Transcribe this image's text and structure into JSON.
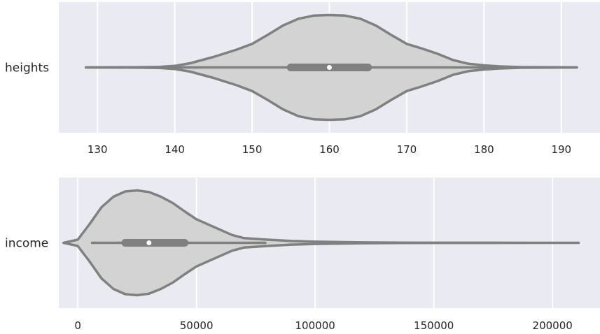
{
  "chart_data": [
    {
      "type": "violin",
      "category": "heights",
      "xlim": [
        125,
        195
      ],
      "xticks": [
        130,
        140,
        150,
        160,
        170,
        180,
        190
      ],
      "xtick_labels": [
        "130",
        "140",
        "150",
        "160",
        "170",
        "180",
        "190"
      ],
      "grid": true,
      "stats": {
        "min": 128.5,
        "q1": 155,
        "median": 160,
        "q3": 165,
        "max": 192
      },
      "density": [
        [
          128.5,
          0.0
        ],
        [
          135,
          0.002
        ],
        [
          138,
          0.01
        ],
        [
          140,
          0.03
        ],
        [
          142,
          0.08
        ],
        [
          145,
          0.2
        ],
        [
          148,
          0.34
        ],
        [
          150,
          0.45
        ],
        [
          152,
          0.62
        ],
        [
          154,
          0.8
        ],
        [
          156,
          0.93
        ],
        [
          158,
          0.99
        ],
        [
          160,
          1.0
        ],
        [
          162,
          0.99
        ],
        [
          164,
          0.93
        ],
        [
          166,
          0.8
        ],
        [
          168,
          0.62
        ],
        [
          170,
          0.45
        ],
        [
          172,
          0.36
        ],
        [
          174,
          0.26
        ],
        [
          176,
          0.14
        ],
        [
          178,
          0.07
        ],
        [
          180,
          0.04
        ],
        [
          182,
          0.02
        ],
        [
          185,
          0.005
        ],
        [
          192,
          0.0
        ]
      ],
      "colors": {
        "fill": "#d3d3d3",
        "line": "#808080",
        "median": "#ffffff",
        "panel": "#eaeaf2",
        "grid": "#ffffff"
      }
    },
    {
      "type": "violin",
      "category": "income",
      "xlim": [
        -8000,
        220000
      ],
      "xticks": [
        0,
        50000,
        100000,
        150000,
        200000
      ],
      "xtick_labels": [
        "0",
        "50000",
        "100000",
        "150000",
        "200000"
      ],
      "grid": true,
      "stats": {
        "min": 6000,
        "q1": 20000,
        "median": 30000,
        "q3": 45000,
        "max": 79000
      },
      "density": [
        [
          -6000,
          0.0
        ],
        [
          0,
          0.06
        ],
        [
          5000,
          0.36
        ],
        [
          10000,
          0.68
        ],
        [
          15000,
          0.88
        ],
        [
          20000,
          0.98
        ],
        [
          25000,
          1.0
        ],
        [
          30000,
          0.97
        ],
        [
          35000,
          0.88
        ],
        [
          40000,
          0.76
        ],
        [
          45000,
          0.6
        ],
        [
          50000,
          0.45
        ],
        [
          55000,
          0.35
        ],
        [
          60000,
          0.25
        ],
        [
          65000,
          0.15
        ],
        [
          70000,
          0.09
        ],
        [
          80000,
          0.06
        ],
        [
          90000,
          0.035
        ],
        [
          100000,
          0.022
        ],
        [
          110000,
          0.014
        ],
        [
          120000,
          0.008
        ],
        [
          135000,
          0.004
        ],
        [
          150000,
          0.002
        ],
        [
          175000,
          0.001
        ],
        [
          211000,
          0.0
        ]
      ],
      "colors": {
        "fill": "#d3d3d3",
        "line": "#808080",
        "median": "#ffffff",
        "panel": "#eaeaf2",
        "grid": "#ffffff"
      }
    }
  ]
}
